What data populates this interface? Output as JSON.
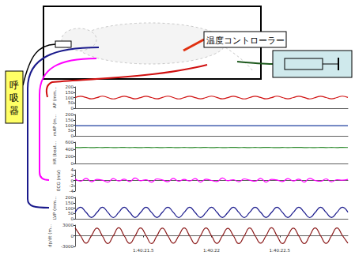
{
  "diagram": {
    "temperature_controller": "温度コントローラー",
    "ventilator": "呼吸器"
  },
  "chart_data": [
    {
      "type": "line",
      "ylabel": "AP (mm...",
      "color": "#d01010",
      "grid": false,
      "tick_labels": "y",
      "xlim": [
        0,
        2
      ],
      "ylim": [
        0,
        200
      ],
      "yticks": [
        0,
        50,
        100,
        150,
        200
      ],
      "x": [
        0,
        0.04,
        0.08,
        0.12,
        0.16,
        0.2,
        0.24,
        0.28,
        0.32,
        0.36,
        0.4,
        0.44,
        0.48,
        0.52,
        0.56,
        0.6,
        0.64,
        0.68,
        0.72,
        0.76,
        0.8,
        0.84,
        0.88,
        0.92,
        0.96,
        1,
        1.04,
        1.08,
        1.12,
        1.16,
        1.2,
        1.24,
        1.28,
        1.32,
        1.36,
        1.4,
        1.44,
        1.48,
        1.52,
        1.56,
        1.6,
        1.64,
        1.68,
        1.72,
        1.76,
        1.8,
        1.84,
        1.88,
        1.92,
        1.96,
        2
      ],
      "values": [
        100,
        112,
        101,
        88,
        99,
        113,
        100,
        87,
        100,
        112,
        101,
        88,
        99,
        112,
        100,
        88,
        101,
        113,
        100,
        87,
        100,
        112,
        99,
        88,
        100,
        113,
        101,
        88,
        99,
        112,
        100,
        87,
        100,
        112,
        101,
        88,
        99,
        113,
        100,
        88,
        100,
        112,
        101,
        87,
        99,
        112,
        100,
        88,
        100,
        113,
        101
      ]
    },
    {
      "type": "line",
      "ylabel": "mAP (m...",
      "color": "#1f3fa0",
      "grid": false,
      "tick_labels": "y",
      "xlim": [
        0,
        2
      ],
      "ylim": [
        0,
        200
      ],
      "yticks": [
        0,
        50,
        100,
        150,
        200
      ],
      "x": [
        0,
        0.04,
        0.08,
        0.12,
        0.16,
        0.2,
        0.24,
        0.28,
        0.32,
        0.36,
        0.4,
        0.44,
        0.48,
        0.52,
        0.56,
        0.6,
        0.64,
        0.68,
        0.72,
        0.76,
        0.8,
        0.84,
        0.88,
        0.92,
        0.96,
        1,
        1.04,
        1.08,
        1.12,
        1.16,
        1.2,
        1.24,
        1.28,
        1.32,
        1.36,
        1.4,
        1.44,
        1.48,
        1.52,
        1.56,
        1.6,
        1.64,
        1.68,
        1.72,
        1.76,
        1.8,
        1.84,
        1.88,
        1.92,
        1.96,
        2
      ],
      "values": [
        96,
        95,
        96,
        96,
        95,
        96,
        95,
        96,
        96,
        95,
        95,
        96,
        96,
        95,
        96,
        95,
        96,
        96,
        95,
        96,
        96,
        95,
        96,
        95,
        96,
        96,
        95,
        96,
        95,
        96,
        95,
        96,
        96,
        95,
        96,
        95,
        96,
        96,
        95,
        96,
        96,
        95,
        96,
        96,
        95,
        96,
        95,
        96,
        96,
        95,
        96
      ]
    },
    {
      "type": "line",
      "ylabel": "HR (beat...",
      "color": "#2e8b2e",
      "grid": false,
      "tick_labels": "y",
      "xlim": [
        0,
        2
      ],
      "ylim": [
        0,
        600
      ],
      "yticks": [
        0,
        200,
        400,
        600
      ],
      "x": [
        0,
        0.04,
        0.08,
        0.12,
        0.16,
        0.2,
        0.24,
        0.28,
        0.32,
        0.36,
        0.4,
        0.44,
        0.48,
        0.52,
        0.56,
        0.6,
        0.64,
        0.68,
        0.72,
        0.76,
        0.8,
        0.84,
        0.88,
        0.92,
        0.96,
        1,
        1.04,
        1.08,
        1.12,
        1.16,
        1.2,
        1.24,
        1.28,
        1.32,
        1.36,
        1.4,
        1.44,
        1.48,
        1.52,
        1.56,
        1.6,
        1.64,
        1.68,
        1.72,
        1.76,
        1.8,
        1.84,
        1.88,
        1.92,
        1.96,
        2
      ],
      "values": [
        452,
        448,
        455,
        446,
        451,
        449,
        454,
        447,
        450,
        453,
        448,
        452,
        446,
        455,
        449,
        451,
        447,
        454,
        450,
        448,
        453,
        447,
        451,
        449,
        455,
        446,
        452,
        448,
        450,
        454,
        449,
        451,
        447,
        453,
        448,
        455,
        450,
        446,
        452,
        449,
        451,
        454,
        448,
        450,
        446,
        453,
        449,
        452,
        447,
        455,
        450
      ]
    },
    {
      "type": "line",
      "ylabel": "ECG (mV)",
      "color": "#ff00ff",
      "grid": false,
      "tick_labels": "y",
      "xlim": [
        0,
        2
      ],
      "ylim": [
        -4,
        4
      ],
      "yticks": [
        -4,
        -2,
        0,
        2,
        4
      ],
      "x": [
        0,
        0.04,
        0.08,
        0.12,
        0.16,
        0.2,
        0.24,
        0.28,
        0.32,
        0.36,
        0.4,
        0.44,
        0.48,
        0.52,
        0.56,
        0.6,
        0.64,
        0.68,
        0.72,
        0.76,
        0.8,
        0.84,
        0.88,
        0.92,
        0.96,
        1,
        1.04,
        1.08,
        1.12,
        1.16,
        1.2,
        1.24,
        1.28,
        1.32,
        1.36,
        1.4,
        1.44,
        1.48,
        1.52,
        1.56,
        1.6,
        1.64,
        1.68,
        1.72,
        1.76,
        1.8,
        1.84,
        1.88,
        1.92,
        1.96,
        2
      ],
      "values": [
        0.6,
        -0.3,
        0.8,
        -0.5,
        0.4,
        0.1,
        -0.6,
        0.7,
        -0.2,
        0.5,
        -0.4,
        0.9,
        -0.1,
        0.3,
        -0.6,
        0.6,
        0.2,
        -0.5,
        0.8,
        -0.3,
        0.4,
        -0.2,
        0.7,
        -0.6,
        0.5,
        0.0,
        -0.4,
        0.9,
        -0.1,
        0.3,
        -0.5,
        0.6,
        0.1,
        -0.3,
        0.8,
        -0.6,
        0.4,
        0.2,
        -0.4,
        0.7,
        -0.2,
        0.5,
        -0.6,
        0.8,
        0.0,
        -0.3,
        0.6,
        -0.5,
        0.3,
        0.1,
        0.4
      ]
    },
    {
      "type": "line",
      "ylabel": "LVP (mm...",
      "color": "#1a1a8c",
      "grid": false,
      "tick_labels": "y",
      "xlim": [
        0,
        2
      ],
      "ylim": [
        0,
        200
      ],
      "yticks": [
        0,
        50,
        100,
        150,
        200
      ],
      "x": [
        0,
        0.04,
        0.08,
        0.12,
        0.16,
        0.2,
        0.24,
        0.28,
        0.32,
        0.36,
        0.4,
        0.44,
        0.48,
        0.52,
        0.56,
        0.6,
        0.64,
        0.68,
        0.72,
        0.76,
        0.8,
        0.84,
        0.88,
        0.92,
        0.96,
        1,
        1.04,
        1.08,
        1.12,
        1.16,
        1.2,
        1.24,
        1.28,
        1.32,
        1.36,
        1.4,
        1.44,
        1.48,
        1.52,
        1.56,
        1.6,
        1.64,
        1.68,
        1.72,
        1.76,
        1.8,
        1.84,
        1.88,
        1.92,
        1.96,
        2
      ],
      "values": [
        60,
        108,
        61,
        12,
        59,
        109,
        60,
        11,
        60,
        108,
        61,
        12,
        59,
        108,
        60,
        12,
        61,
        109,
        60,
        11,
        60,
        108,
        59,
        12,
        60,
        109,
        61,
        12,
        59,
        108,
        60,
        11,
        60,
        108,
        61,
        12,
        59,
        109,
        60,
        12,
        60,
        108,
        61,
        11,
        59,
        108,
        60,
        12,
        60,
        109,
        61
      ]
    },
    {
      "type": "line",
      "ylabel": "dp/dt (m...",
      "color": "#8b1a1a",
      "grid": false,
      "tick_labels": true,
      "xlim": [
        0,
        2
      ],
      "xticks": [
        {
          "value": 0.5,
          "label": "1:40:21.5"
        },
        {
          "value": 1,
          "label": "1:40:22"
        },
        {
          "value": 1.5,
          "label": "1:40:22.5"
        }
      ],
      "ylim": [
        -3000,
        3000
      ],
      "yticks": [
        -3000,
        0,
        3000
      ],
      "x": [
        0,
        0.04,
        0.08,
        0.12,
        0.16,
        0.2,
        0.24,
        0.28,
        0.32,
        0.36,
        0.4,
        0.44,
        0.48,
        0.52,
        0.56,
        0.6,
        0.64,
        0.68,
        0.72,
        0.76,
        0.8,
        0.84,
        0.88,
        0.92,
        0.96,
        1,
        1.04,
        1.08,
        1.12,
        1.16,
        1.2,
        1.24,
        1.28,
        1.32,
        1.36,
        1.4,
        1.44,
        1.48,
        1.52,
        1.56,
        1.6,
        1.64,
        1.68,
        1.72,
        1.76,
        1.8,
        1.84,
        1.88,
        1.92,
        1.96,
        2
      ],
      "values": [
        2200,
        0,
        -2100,
        50,
        2150,
        -50,
        -2200,
        0,
        2250,
        0,
        -2150,
        -50,
        2200,
        50,
        -2200,
        0,
        2150,
        0,
        -2100,
        0,
        2200,
        -50,
        -2250,
        50,
        2200,
        0,
        -2150,
        0,
        2100,
        50,
        -2200,
        -50,
        2200,
        0,
        -2100,
        0,
        2250,
        0,
        -2200,
        50,
        2150,
        -50,
        -2200,
        0,
        2200,
        0,
        -2150,
        0,
        2200,
        50,
        -2100
      ]
    }
  ]
}
